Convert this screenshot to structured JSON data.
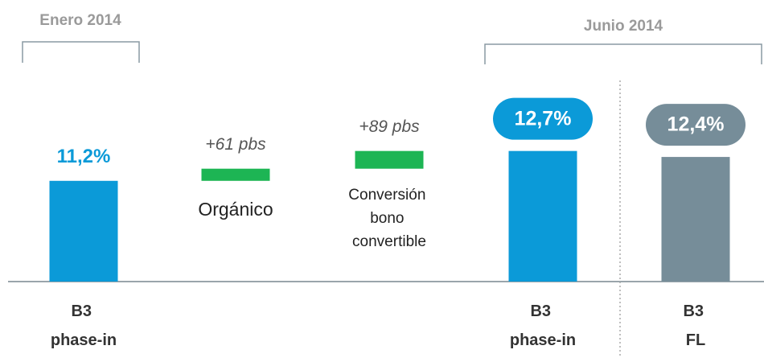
{
  "chart_data": {
    "type": "waterfall",
    "periods": [
      "Enero 2014",
      "Junio 2014"
    ],
    "categories": [
      "B3 phase-in",
      "Orgánico",
      "Conversión bono convertible",
      "B3 phase-in",
      "B3 FL"
    ],
    "kinds": [
      "total",
      "increase",
      "increase",
      "total",
      "total"
    ],
    "values": [
      11.2,
      0.61,
      0.89,
      12.7,
      12.4
    ],
    "value_labels": [
      "11,2%",
      "+61 pbs",
      "+89 pbs",
      "12,7%",
      "12,4%"
    ],
    "colors": [
      "#0b9ad8",
      "#1db554",
      "#1db554",
      "#0b9ad8",
      "#768d99"
    ],
    "label_pill": [
      false,
      false,
      false,
      true,
      true
    ],
    "ylim": [
      6.14,
      16
    ]
  }
}
